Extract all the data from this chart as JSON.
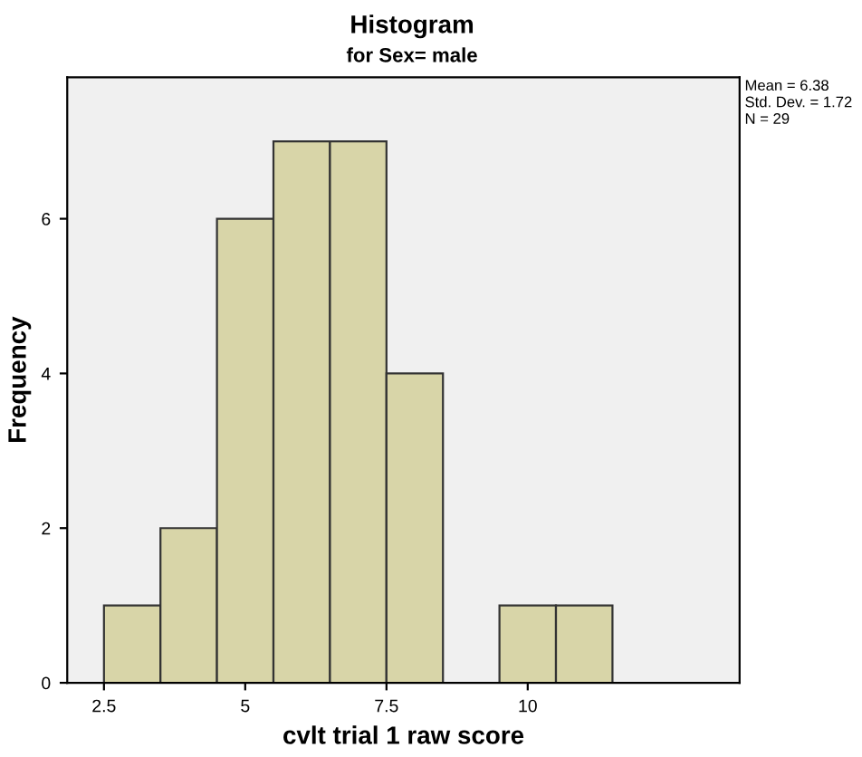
{
  "chart_data": {
    "type": "histogram",
    "title": "Histogram",
    "subtitle": "for Sex= male",
    "xlabel": "cvlt trial 1 raw score",
    "ylabel": "Frequency",
    "bins": [
      2.5,
      3.5,
      4.5,
      5.5,
      6.5,
      7.5,
      8.5,
      9.5,
      10.5,
      11.5
    ],
    "values": [
      1,
      2,
      6,
      7,
      7,
      4,
      0,
      1,
      1
    ],
    "color": "#d8d5a8",
    "xlim": [
      1.85,
      13.75
    ],
    "ylim": [
      0,
      7.83
    ],
    "xticks": [
      2.5,
      5,
      7.5,
      10
    ],
    "yticks": [
      0,
      2,
      4,
      6
    ],
    "annotations": [
      "Mean = 6.38",
      "Std. Dev. = 1.72",
      "N = 29"
    ]
  }
}
